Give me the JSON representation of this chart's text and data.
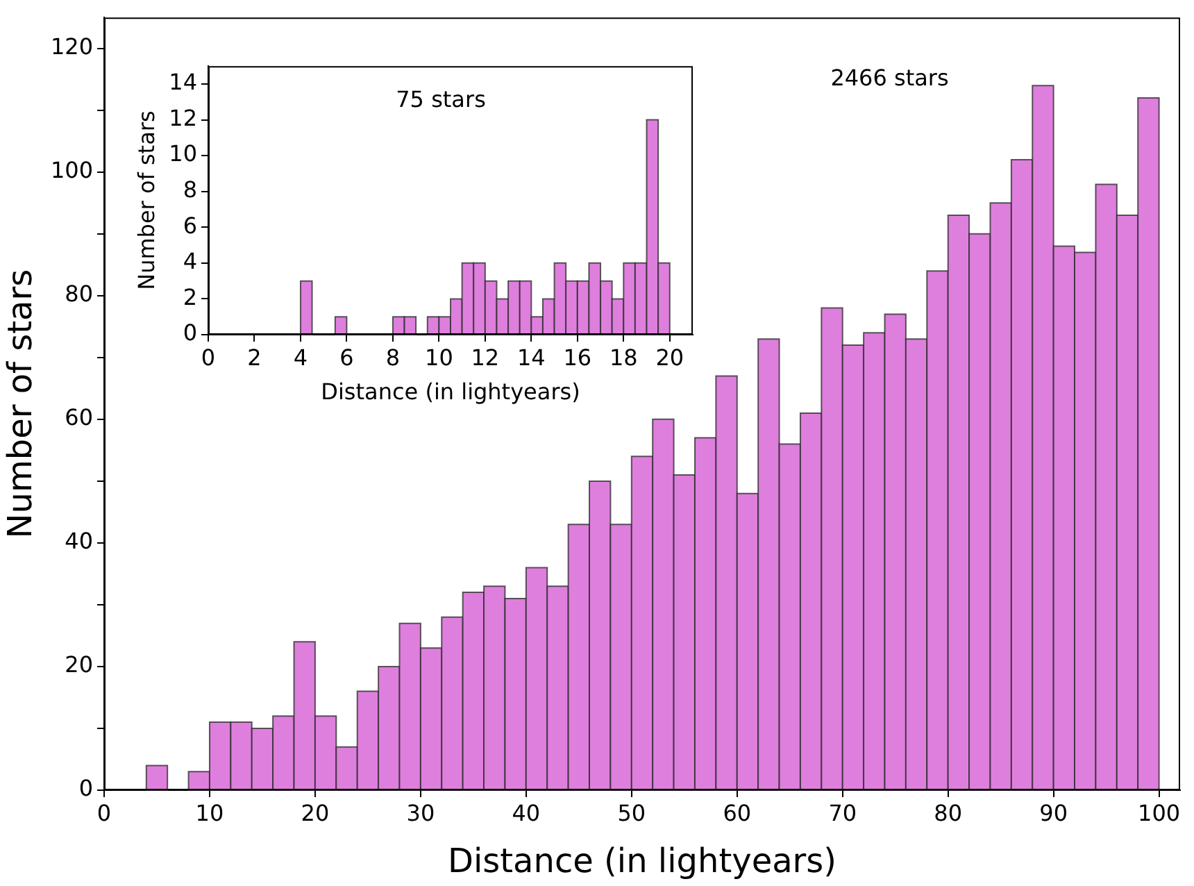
{
  "chart_data": [
    {
      "type": "histogram",
      "xlabel": "Distance (in lightyears)",
      "ylabel": "Number of stars",
      "color": "#de7fdd",
      "bins": [
        4,
        6,
        8,
        10,
        12,
        14,
        16,
        18,
        20,
        22,
        24,
        26,
        28,
        30,
        32,
        34,
        36,
        38,
        40,
        42,
        44,
        46,
        48,
        50,
        52,
        54,
        56,
        58,
        60,
        62,
        64,
        66,
        68,
        70,
        72,
        74,
        76,
        78,
        80,
        82,
        84,
        86,
        88,
        90,
        92,
        94,
        96,
        98,
        100
      ],
      "values": [
        4,
        0,
        3,
        11,
        11,
        10,
        12,
        24,
        12,
        7,
        16,
        20,
        27,
        23,
        28,
        32,
        33,
        31,
        36,
        33,
        43,
        50,
        43,
        54,
        60,
        51,
        57,
        67,
        48,
        73,
        56,
        61,
        78,
        72,
        74,
        77,
        73,
        84,
        93,
        90,
        95,
        102,
        114,
        88,
        87,
        98,
        93,
        112
      ],
      "xlim": [
        0,
        102
      ],
      "ylim": [
        0,
        125
      ],
      "xticks": [
        0,
        10,
        20,
        30,
        40,
        50,
        60,
        70,
        80,
        90,
        100
      ],
      "yticks": [
        0,
        {
          "value": 10,
          "label": null
        },
        20,
        {
          "value": 30,
          "label": null
        },
        40,
        {
          "value": 50,
          "label": null
        },
        60,
        {
          "value": 70,
          "label": null
        },
        80,
        {
          "value": 90,
          "label": null
        },
        100,
        {
          "value": 110,
          "label": null
        },
        120
      ],
      "grid": false,
      "legend": false,
      "annotations": [
        "2466 stars"
      ]
    },
    {
      "type": "histogram",
      "xlabel": "Distance (in lightyears)",
      "ylabel": "Number of stars",
      "color": "#de7fdd",
      "bins": [
        4,
        4.5,
        5,
        5.5,
        6,
        6.5,
        7,
        7.5,
        8,
        8.5,
        9,
        9.5,
        10,
        10.5,
        11,
        11.5,
        12,
        12.5,
        13,
        13.5,
        14,
        14.5,
        15,
        15.5,
        16,
        16.5,
        17,
        17.5,
        18,
        18.5,
        19,
        19.5,
        20
      ],
      "values": [
        3,
        0,
        0,
        1,
        0,
        0,
        0,
        0,
        1,
        1,
        0,
        1,
        1,
        2,
        4,
        4,
        3,
        2,
        3,
        3,
        1,
        2,
        4,
        3,
        3,
        4,
        3,
        2,
        4,
        4,
        12,
        4
      ],
      "xlim": [
        0,
        21
      ],
      "ylim": [
        0,
        15
      ],
      "xticks": [
        0,
        2,
        4,
        6,
        8,
        10,
        12,
        14,
        16,
        18,
        20
      ],
      "yticks": [
        0,
        2,
        4,
        6,
        8,
        10,
        12,
        14
      ],
      "grid": false,
      "legend": false,
      "annotations": [
        "75 stars"
      ]
    }
  ]
}
